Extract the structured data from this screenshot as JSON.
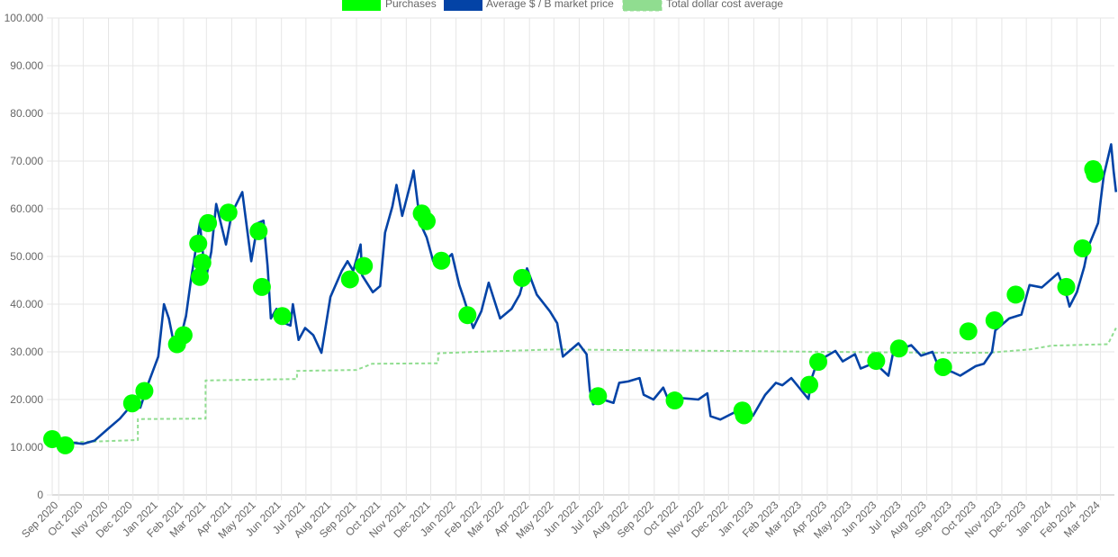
{
  "chart_data": {
    "type": "line",
    "title": "",
    "xlabel": "",
    "ylabel": "",
    "ylim": [
      0,
      100000
    ],
    "x_range": [
      "2020-08-24",
      "2024-03-18"
    ],
    "grid": true,
    "legend_position": "top",
    "legend": [
      {
        "name": "Purchases",
        "color": "#00ff00",
        "kind": "box"
      },
      {
        "name": "Average $ / B market price",
        "color": "#0343a6",
        "kind": "box"
      },
      {
        "name": "Total dollar cost average",
        "color": "#90dd90",
        "kind": "dashed"
      }
    ],
    "y_ticks": [
      "0",
      "10.000",
      "20.000",
      "30.000",
      "40.000",
      "50.000",
      "60.000",
      "70.000",
      "80.000",
      "90.000",
      "100.000"
    ],
    "x_ticks": [
      {
        "label": "Sep 2020",
        "date": "2020-09-01"
      },
      {
        "label": "Oct 2020",
        "date": "2020-10-01"
      },
      {
        "label": "Nov 2020",
        "date": "2020-11-01"
      },
      {
        "label": "Dec 2020",
        "date": "2020-12-01"
      },
      {
        "label": "Jan 2021",
        "date": "2021-01-01"
      },
      {
        "label": "Feb 2021",
        "date": "2021-02-01"
      },
      {
        "label": "Mar 2021",
        "date": "2021-03-01"
      },
      {
        "label": "Apr 2021",
        "date": "2021-04-01"
      },
      {
        "label": "May 2021",
        "date": "2021-05-01"
      },
      {
        "label": "Jun 2021",
        "date": "2021-06-01"
      },
      {
        "label": "Jul 2021",
        "date": "2021-07-01"
      },
      {
        "label": "Aug 2021",
        "date": "2021-08-01"
      },
      {
        "label": "Sep 2021",
        "date": "2021-09-01"
      },
      {
        "label": "Oct 2021",
        "date": "2021-10-01"
      },
      {
        "label": "Nov 2021",
        "date": "2021-11-01"
      },
      {
        "label": "Dec 2021",
        "date": "2021-12-01"
      },
      {
        "label": "Jan 2022",
        "date": "2022-01-01"
      },
      {
        "label": "Feb 2022",
        "date": "2022-02-01"
      },
      {
        "label": "Mar 2022",
        "date": "2022-03-01"
      },
      {
        "label": "Apr 2022",
        "date": "2022-04-01"
      },
      {
        "label": "May 2022",
        "date": "2022-05-01"
      },
      {
        "label": "Jun 2022",
        "date": "2022-06-01"
      },
      {
        "label": "Jul 2022",
        "date": "2022-07-01"
      },
      {
        "label": "Aug 2022",
        "date": "2022-08-01"
      },
      {
        "label": "Sep 2022",
        "date": "2022-09-01"
      },
      {
        "label": "Oct 2022",
        "date": "2022-10-01"
      },
      {
        "label": "Nov 2022",
        "date": "2022-11-01"
      },
      {
        "label": "Dec 2022",
        "date": "2022-12-01"
      },
      {
        "label": "Jan 2023",
        "date": "2023-01-01"
      },
      {
        "label": "Feb 2023",
        "date": "2023-02-01"
      },
      {
        "label": "Mar 2023",
        "date": "2023-03-01"
      },
      {
        "label": "Apr 2023",
        "date": "2023-04-01"
      },
      {
        "label": "May 2023",
        "date": "2023-05-01"
      },
      {
        "label": "Jun 2023",
        "date": "2023-06-01"
      },
      {
        "label": "Jul 2023",
        "date": "2023-07-01"
      },
      {
        "label": "Aug 2023",
        "date": "2023-08-01"
      },
      {
        "label": "Sep 2023",
        "date": "2023-09-01"
      },
      {
        "label": "Oct 2023",
        "date": "2023-10-01"
      },
      {
        "label": "Nov 2023",
        "date": "2023-11-01"
      },
      {
        "label": "Dec 2023",
        "date": "2023-12-01"
      },
      {
        "label": "Jan 2024",
        "date": "2024-01-01"
      },
      {
        "label": "Feb 2024",
        "date": "2024-02-01"
      },
      {
        "label": "Mar 2024",
        "date": "2024-03-01"
      }
    ],
    "series": [
      {
        "name": "Average $ / B market price",
        "color": "#0343a6",
        "points": [
          [
            "2020-08-24",
            11700
          ],
          [
            "2020-09-05",
            10300
          ],
          [
            "2020-09-15",
            11000
          ],
          [
            "2020-10-01",
            10700
          ],
          [
            "2020-10-15",
            11400
          ],
          [
            "2020-10-31",
            13800
          ],
          [
            "2020-11-15",
            16000
          ],
          [
            "2020-11-30",
            19000
          ],
          [
            "2020-12-10",
            18300
          ],
          [
            "2020-12-20",
            23500
          ],
          [
            "2021-01-01",
            29000
          ],
          [
            "2021-01-08",
            40000
          ],
          [
            "2021-01-14",
            37000
          ],
          [
            "2021-01-21",
            31000
          ],
          [
            "2021-01-27",
            32000
          ],
          [
            "2021-02-04",
            37500
          ],
          [
            "2021-02-10",
            45000
          ],
          [
            "2021-02-21",
            57000
          ],
          [
            "2021-02-28",
            45000
          ],
          [
            "2021-03-07",
            51000
          ],
          [
            "2021-03-13",
            61000
          ],
          [
            "2021-03-25",
            52500
          ],
          [
            "2021-04-01",
            59000
          ],
          [
            "2021-04-14",
            63500
          ],
          [
            "2021-04-25",
            49000
          ],
          [
            "2021-05-03",
            57000
          ],
          [
            "2021-05-10",
            57500
          ],
          [
            "2021-05-15",
            48000
          ],
          [
            "2021-05-19",
            37000
          ],
          [
            "2021-05-26",
            39000
          ],
          [
            "2021-06-05",
            36000
          ],
          [
            "2021-06-12",
            35500
          ],
          [
            "2021-06-15",
            40000
          ],
          [
            "2021-06-22",
            32500
          ],
          [
            "2021-06-30",
            35000
          ],
          [
            "2021-07-10",
            33500
          ],
          [
            "2021-07-20",
            29800
          ],
          [
            "2021-07-31",
            41500
          ],
          [
            "2021-08-14",
            47000
          ],
          [
            "2021-08-21",
            49000
          ],
          [
            "2021-08-28",
            47000
          ],
          [
            "2021-09-06",
            52500
          ],
          [
            "2021-09-08",
            46000
          ],
          [
            "2021-09-21",
            42500
          ],
          [
            "2021-09-30",
            43800
          ],
          [
            "2021-10-06",
            55000
          ],
          [
            "2021-10-15",
            60500
          ],
          [
            "2021-10-20",
            65000
          ],
          [
            "2021-10-27",
            58500
          ],
          [
            "2021-11-08",
            66500
          ],
          [
            "2021-11-10",
            68000
          ],
          [
            "2021-11-18",
            57000
          ],
          [
            "2021-11-26",
            54000
          ],
          [
            "2021-12-04",
            49000
          ],
          [
            "2021-12-15",
            48500
          ],
          [
            "2021-12-27",
            50500
          ],
          [
            "2022-01-05",
            44000
          ],
          [
            "2022-01-10",
            41500
          ],
          [
            "2022-01-22",
            35000
          ],
          [
            "2022-02-01",
            38500
          ],
          [
            "2022-02-10",
            44500
          ],
          [
            "2022-02-24",
            37000
          ],
          [
            "2022-03-10",
            39000
          ],
          [
            "2022-03-20",
            42000
          ],
          [
            "2022-03-29",
            47500
          ],
          [
            "2022-04-10",
            42000
          ],
          [
            "2022-04-26",
            38500
          ],
          [
            "2022-05-05",
            36000
          ],
          [
            "2022-05-12",
            29000
          ],
          [
            "2022-05-31",
            31800
          ],
          [
            "2022-06-10",
            29500
          ],
          [
            "2022-06-14",
            22000
          ],
          [
            "2022-06-18",
            19000
          ],
          [
            "2022-06-30",
            20000
          ],
          [
            "2022-07-13",
            19300
          ],
          [
            "2022-07-20",
            23500
          ],
          [
            "2022-07-31",
            23800
          ],
          [
            "2022-08-14",
            24500
          ],
          [
            "2022-08-19",
            21000
          ],
          [
            "2022-08-31",
            20000
          ],
          [
            "2022-09-12",
            22500
          ],
          [
            "2022-09-21",
            18800
          ],
          [
            "2022-10-05",
            20300
          ],
          [
            "2022-10-25",
            20000
          ],
          [
            "2022-11-05",
            21300
          ],
          [
            "2022-11-09",
            16500
          ],
          [
            "2022-11-21",
            15800
          ],
          [
            "2022-12-14",
            17800
          ],
          [
            "2022-12-31",
            16600
          ],
          [
            "2023-01-15",
            21000
          ],
          [
            "2023-01-28",
            23500
          ],
          [
            "2023-02-05",
            23000
          ],
          [
            "2023-02-16",
            24500
          ],
          [
            "2023-03-09",
            20100
          ],
          [
            "2023-03-13",
            24500
          ],
          [
            "2023-03-20",
            28000
          ],
          [
            "2023-04-11",
            30200
          ],
          [
            "2023-04-20",
            28000
          ],
          [
            "2023-05-05",
            29500
          ],
          [
            "2023-05-12",
            26500
          ],
          [
            "2023-05-29",
            27700
          ],
          [
            "2023-06-15",
            25000
          ],
          [
            "2023-06-21",
            30000
          ],
          [
            "2023-07-13",
            31400
          ],
          [
            "2023-07-25",
            29200
          ],
          [
            "2023-08-08",
            30000
          ],
          [
            "2023-08-17",
            26200
          ],
          [
            "2023-09-01",
            25800
          ],
          [
            "2023-09-11",
            25000
          ],
          [
            "2023-09-30",
            27000
          ],
          [
            "2023-10-10",
            27500
          ],
          [
            "2023-10-20",
            30000
          ],
          [
            "2023-10-24",
            34500
          ],
          [
            "2023-11-10",
            37000
          ],
          [
            "2023-11-25",
            37800
          ],
          [
            "2023-12-05",
            44000
          ],
          [
            "2023-12-20",
            43500
          ],
          [
            "2024-01-09",
            46500
          ],
          [
            "2024-01-20",
            41500
          ],
          [
            "2024-01-23",
            39500
          ],
          [
            "2024-02-01",
            42500
          ],
          [
            "2024-02-10",
            47800
          ],
          [
            "2024-02-15",
            52000
          ],
          [
            "2024-02-27",
            57000
          ],
          [
            "2024-03-01",
            61500
          ],
          [
            "2024-03-05",
            67000
          ],
          [
            "2024-03-14",
            73500
          ],
          [
            "2024-03-17",
            68000
          ],
          [
            "2024-03-20",
            63500
          ]
        ]
      },
      {
        "name": "Total dollar cost average",
        "color": "#90dd90",
        "points": [
          [
            "2020-08-24",
            11700
          ],
          [
            "2020-09-09",
            11700
          ],
          [
            "2020-09-09",
            11000
          ],
          [
            "2020-12-07",
            11500
          ],
          [
            "2020-12-07",
            15900
          ],
          [
            "2021-02-28",
            16000
          ],
          [
            "2021-02-28",
            24000
          ],
          [
            "2021-06-20",
            24300
          ],
          [
            "2021-06-20",
            26000
          ],
          [
            "2021-09-01",
            26200
          ],
          [
            "2021-09-20",
            27500
          ],
          [
            "2021-12-10",
            27600
          ],
          [
            "2021-12-10",
            29700
          ],
          [
            "2022-01-25",
            30000
          ],
          [
            "2022-05-01",
            30500
          ],
          [
            "2023-04-01",
            30000
          ],
          [
            "2023-09-01",
            29800
          ],
          [
            "2023-10-15",
            29800
          ],
          [
            "2023-12-05",
            30500
          ],
          [
            "2024-01-01",
            31300
          ],
          [
            "2024-03-10",
            31600
          ],
          [
            "2024-03-20",
            35000
          ]
        ]
      }
    ],
    "purchases": [
      [
        "2020-08-24",
        11700
      ],
      [
        "2020-09-09",
        10400
      ],
      [
        "2020-11-30",
        19200
      ],
      [
        "2020-12-15",
        21800
      ],
      [
        "2021-01-24",
        31600
      ],
      [
        "2021-02-01",
        33500
      ],
      [
        "2021-02-21",
        45700
      ],
      [
        "2021-02-19",
        52700
      ],
      [
        "2021-02-24",
        48700
      ],
      [
        "2021-03-03",
        57000
      ],
      [
        "2021-03-28",
        59200
      ],
      [
        "2021-05-04",
        55300
      ],
      [
        "2021-05-08",
        43600
      ],
      [
        "2021-06-02",
        37500
      ],
      [
        "2021-08-24",
        45200
      ],
      [
        "2021-09-10",
        48000
      ],
      [
        "2021-11-20",
        59000
      ],
      [
        "2021-11-26",
        57400
      ],
      [
        "2021-12-14",
        49100
      ],
      [
        "2022-01-15",
        37700
      ],
      [
        "2022-03-23",
        45500
      ],
      [
        "2022-06-24",
        20700
      ],
      [
        "2022-09-26",
        19800
      ],
      [
        "2022-12-18",
        17700
      ],
      [
        "2022-12-20",
        16700
      ],
      [
        "2023-03-10",
        23100
      ],
      [
        "2023-03-21",
        27900
      ],
      [
        "2023-05-31",
        28100
      ],
      [
        "2023-06-28",
        30700
      ],
      [
        "2023-08-21",
        26800
      ],
      [
        "2023-09-21",
        34300
      ],
      [
        "2023-10-23",
        36600
      ],
      [
        "2023-11-18",
        42000
      ],
      [
        "2024-01-19",
        43600
      ],
      [
        "2024-02-08",
        51700
      ],
      [
        "2024-02-21",
        68300
      ],
      [
        "2024-02-23",
        67300
      ]
    ]
  }
}
